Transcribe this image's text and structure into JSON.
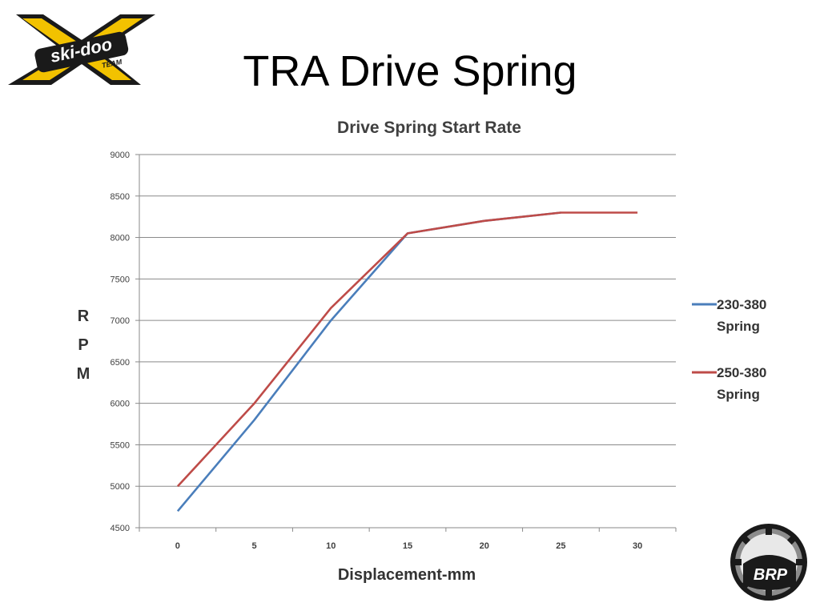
{
  "slide": {
    "title": "TRA Drive Spring"
  },
  "logos": {
    "top_left": {
      "icon": "ski-doo-team-logo",
      "text": "ski-doo TEAM",
      "colors": [
        "#f2c200",
        "#1a1a1a"
      ]
    },
    "bottom_right": {
      "icon": "brp-logo",
      "text": "BRP",
      "colors": [
        "#1a1a1a",
        "#9a9a9a"
      ]
    }
  },
  "chart_data": {
    "type": "line",
    "title": "Drive Spring Start Rate",
    "xlabel": "Displacement-mm",
    "ylabel": [
      "R",
      "P",
      "M"
    ],
    "categories": [
      "0",
      "5",
      "10",
      "15",
      "20",
      "25",
      "30"
    ],
    "y_ticks": [
      "4500",
      "5000",
      "5500",
      "6000",
      "6500",
      "7000",
      "7500",
      "8000",
      "8500",
      "9000"
    ],
    "ylim": [
      4500,
      9000
    ],
    "grid": true,
    "legend_position": "right",
    "series": [
      {
        "name": "230-380 Spring",
        "name_lines": [
          "230-380",
          "Spring"
        ],
        "color": "#4a7ebb",
        "values": [
          4700,
          5800,
          7000,
          8050,
          8200,
          8300,
          null
        ]
      },
      {
        "name": "250-380 Spring",
        "name_lines": [
          "250-380",
          "Spring"
        ],
        "color": "#be4b48",
        "values": [
          5000,
          6000,
          7150,
          8050,
          8200,
          8300,
          8300
        ]
      }
    ]
  }
}
